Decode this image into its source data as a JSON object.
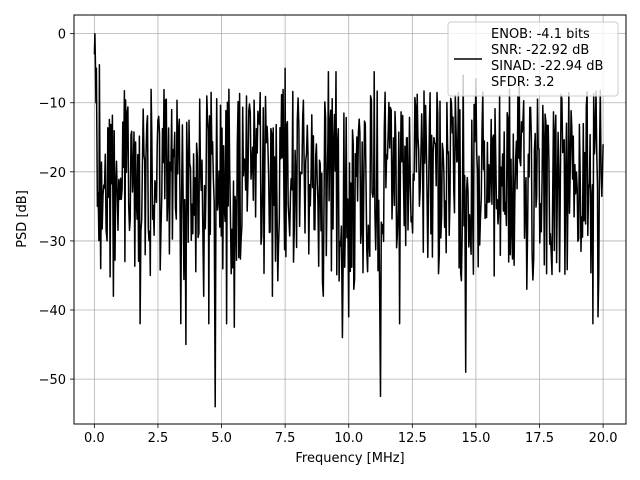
{
  "chart_data": {
    "type": "line",
    "xlabel": "Frequency [MHz]",
    "ylabel": "PSD [dB]",
    "xlim": [
      -0.8,
      20.9
    ],
    "ylim": [
      -56.5,
      2.7
    ],
    "x_ticks": [
      0.0,
      2.5,
      5.0,
      7.5,
      10.0,
      12.5,
      15.0,
      17.5,
      20.0
    ],
    "x_tick_labels": [
      "0.0",
      "2.5",
      "5.0",
      "7.5",
      "10.0",
      "12.5",
      "15.0",
      "17.5",
      "20.0"
    ],
    "y_ticks": [
      0,
      -10,
      -20,
      -30,
      -40,
      -50
    ],
    "y_tick_labels": [
      "0",
      "−10",
      "−20",
      "−30",
      "−40",
      "−50"
    ],
    "grid": true,
    "legend_position": "top-right",
    "legend": [
      "ENOB: -4.1 bits",
      "SNR: -22.92 dB",
      "SINAD: -22.94 dB",
      "SFDR: 3.2"
    ],
    "line_color": "#000000",
    "series": [
      {
        "x": [
          0.0,
          0.02,
          0.04,
          0.06,
          0.08,
          0.12,
          0.2,
          0.25,
          0.5,
          0.75,
          1.0,
          1.2,
          1.8,
          2.0,
          2.2,
          3.4,
          3.6,
          4.3,
          4.5,
          4.75,
          5.2,
          5.5,
          7.0,
          7.5,
          9.0,
          9.2,
          9.5,
          9.75,
          10.0,
          10.2,
          11.0,
          11.25,
          12.0,
          14.5,
          14.6,
          15.0,
          16.7,
          17.0,
          19.6,
          19.8,
          20.0
        ],
        "y": [
          -3.0,
          0.0,
          -4.0,
          -10.0,
          -5.0,
          -25.0,
          -4.5,
          -34.0,
          -30.0,
          -38.0,
          -24.0,
          -33.0,
          -42.0,
          -32.0,
          -35.0,
          -42.0,
          -45.0,
          -38.0,
          -42.0,
          -54.0,
          -42.0,
          -42.5,
          -38.0,
          -5.0,
          -38.0,
          -5.5,
          -5.5,
          -44.0,
          -41.0,
          -37.0,
          -5.5,
          -52.5,
          -42.0,
          -6.0,
          -49.0,
          -6.5,
          -6.5,
          -37.0,
          -42.0,
          -41.0,
          -16.0
        ]
      }
    ]
  }
}
